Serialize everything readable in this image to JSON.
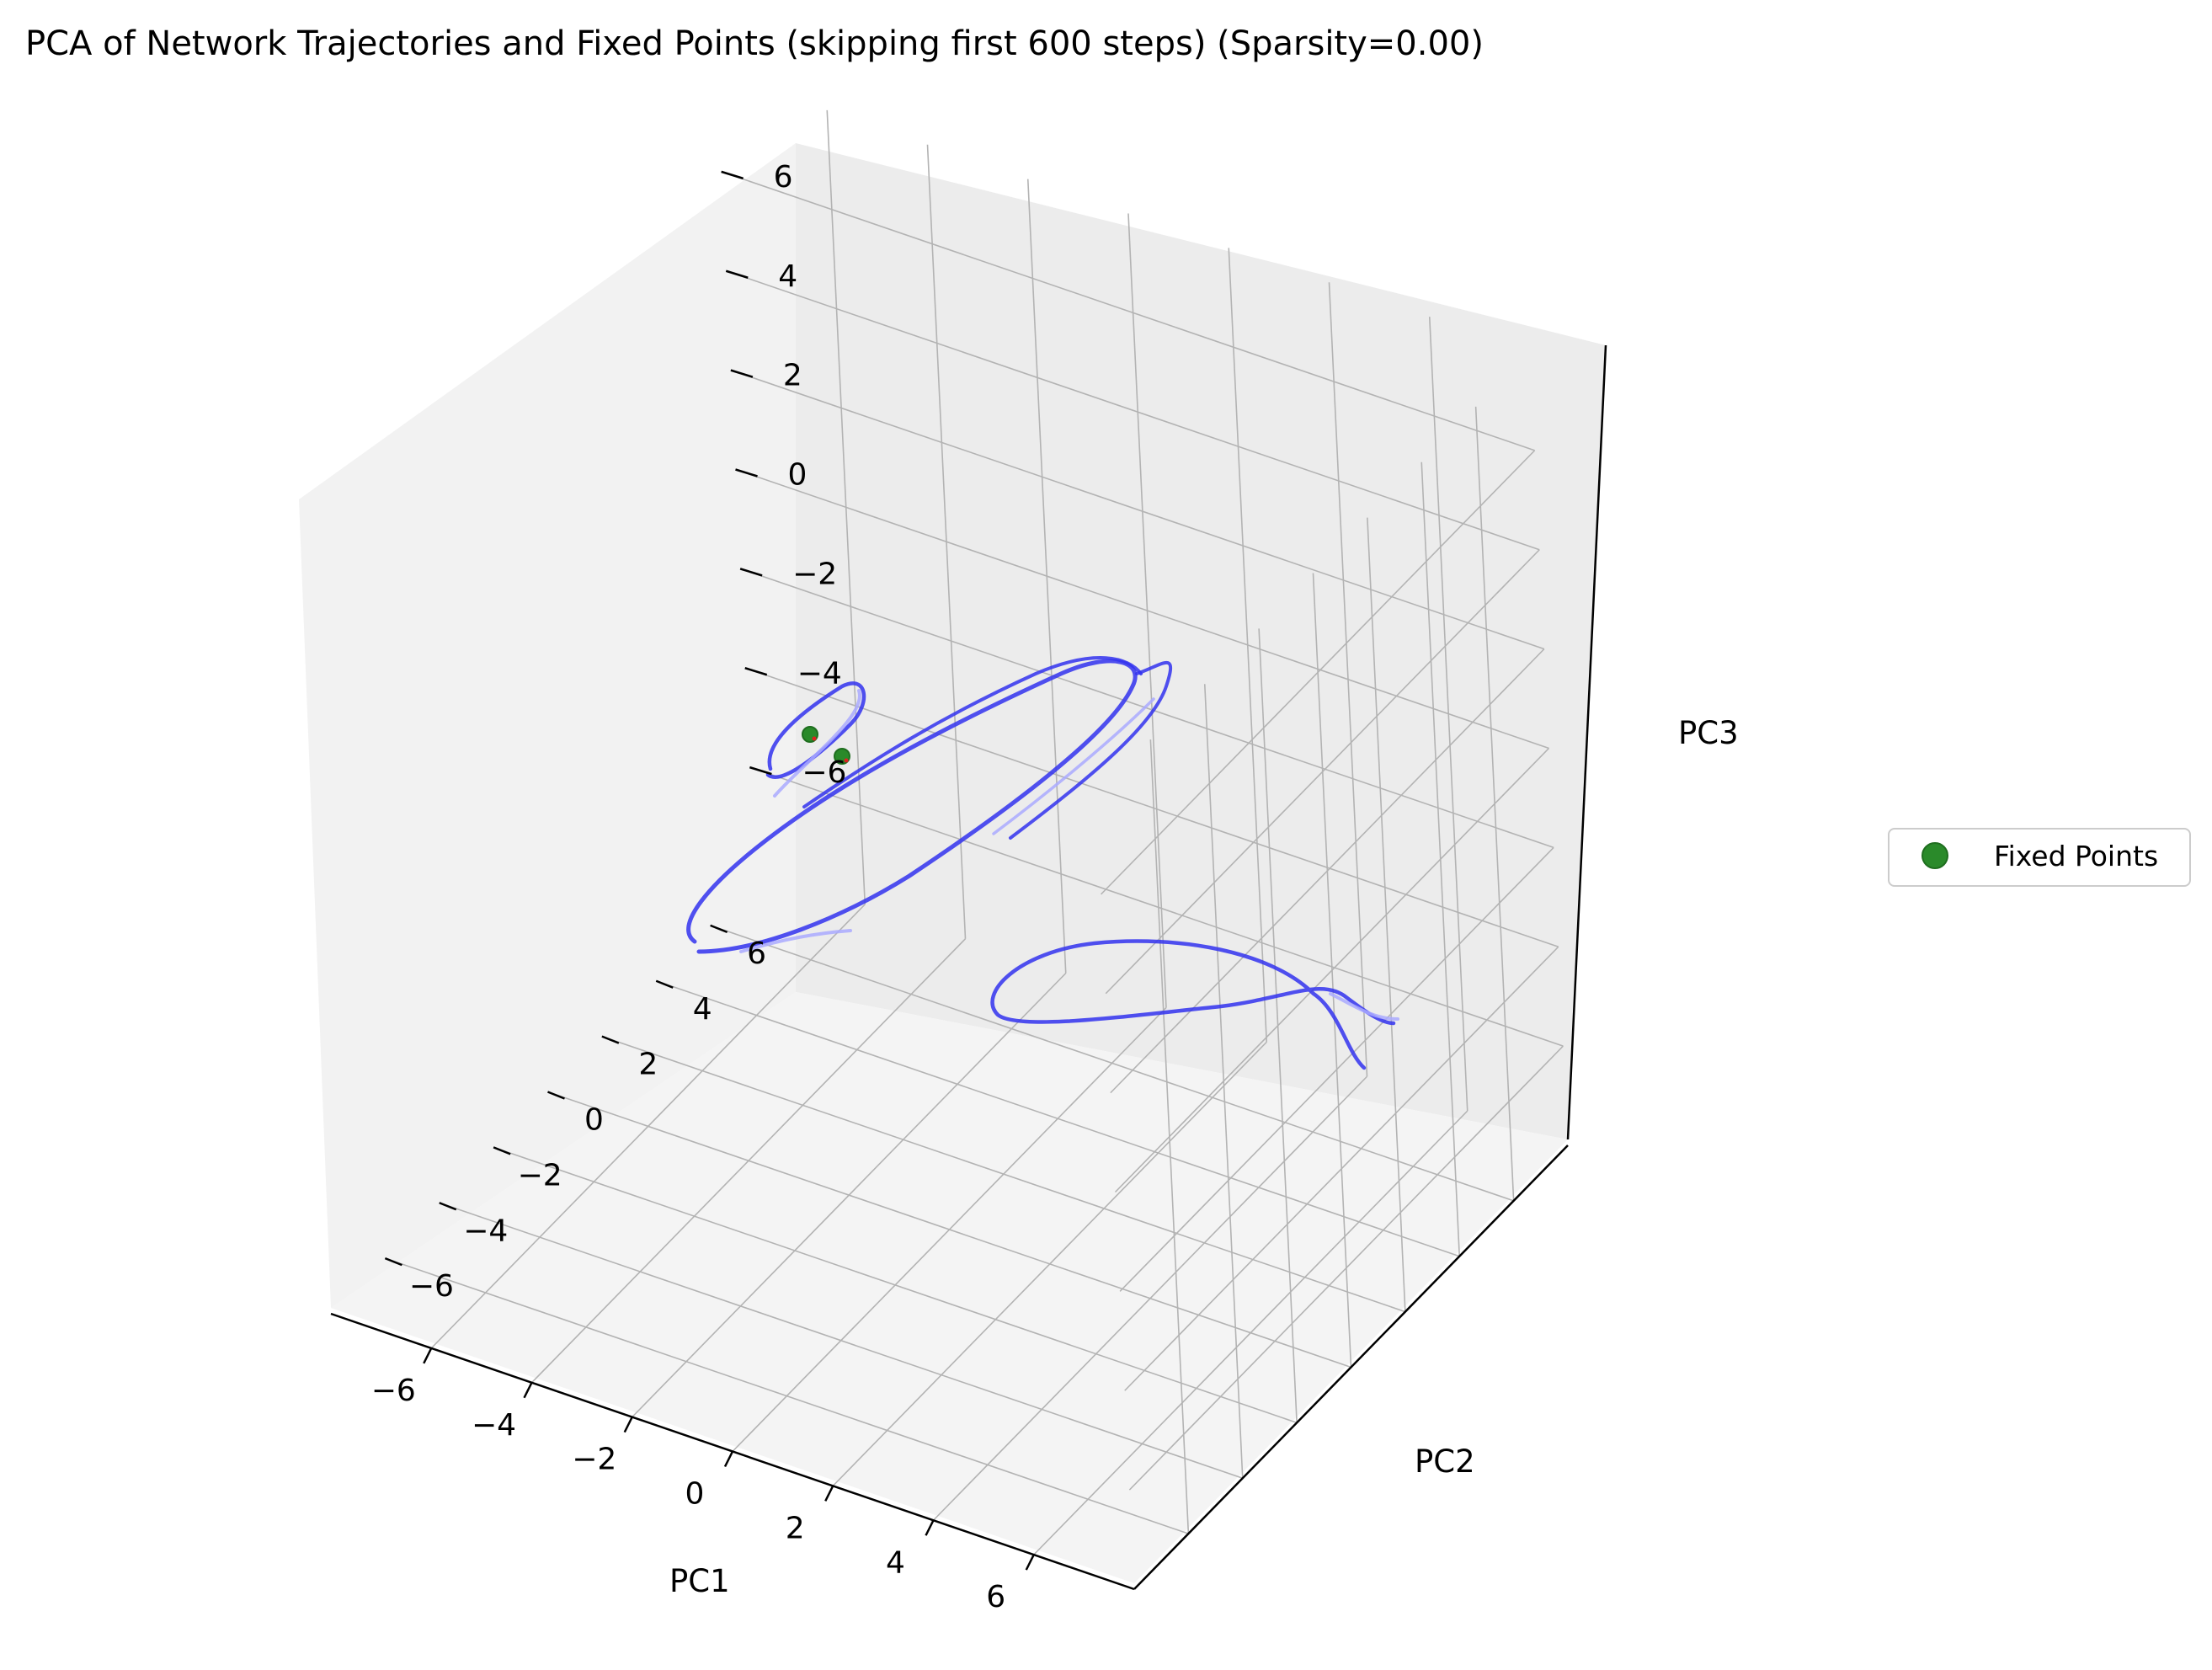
{
  "chart_data": {
    "type": "scatter3d-line",
    "title": "PCA of Network Trajectories and Fixed Points (skipping first 600 steps) (Sparsity=0.00)",
    "xlabel": "PC1",
    "ylabel": "PC2",
    "zlabel": "PC3",
    "xlim": [
      -8,
      8
    ],
    "ylim": [
      -8,
      8
    ],
    "zlim": [
      -8,
      8
    ],
    "xticks": [
      -6,
      -4,
      -2,
      0,
      2,
      4,
      6
    ],
    "yticks": [
      -6,
      -4,
      -2,
      0,
      2,
      4,
      6
    ],
    "zticks": [
      -6,
      -4,
      -2,
      0,
      2,
      4,
      6
    ],
    "xtick_labels": [
      "−6",
      "−4",
      "−2",
      "0",
      "2",
      "4",
      "6"
    ],
    "ytick_labels": [
      "−6",
      "−4",
      "−2",
      "0",
      "2",
      "4",
      "6"
    ],
    "ztick_labels": [
      "−6",
      "−4",
      "−2",
      "0",
      "2",
      "4",
      "6"
    ],
    "grid": true,
    "colors": {
      "trajectory": "#3333ee",
      "trajectory_faded": "#aaaaff",
      "fixed_point_fill": "#2a8a2a",
      "fixed_point_edge": "#1f6e1f",
      "unstable_marker": "#dd2222",
      "pane_left": "#f2f2f2",
      "pane_back": "#ececec",
      "pane_floor": "#f4f4f4",
      "grid": "#b3b3b3"
    },
    "fixed_points": [
      {
        "pc1": -4.9,
        "pc2": 1.6,
        "pc3": 1.9
      },
      {
        "pc1": -4.7,
        "pc2": 2.4,
        "pc3": 1.3
      }
    ],
    "legend": {
      "entries": [
        {
          "label": "Fixed Points",
          "marker": "circle"
        }
      ],
      "position": "center-right"
    }
  }
}
